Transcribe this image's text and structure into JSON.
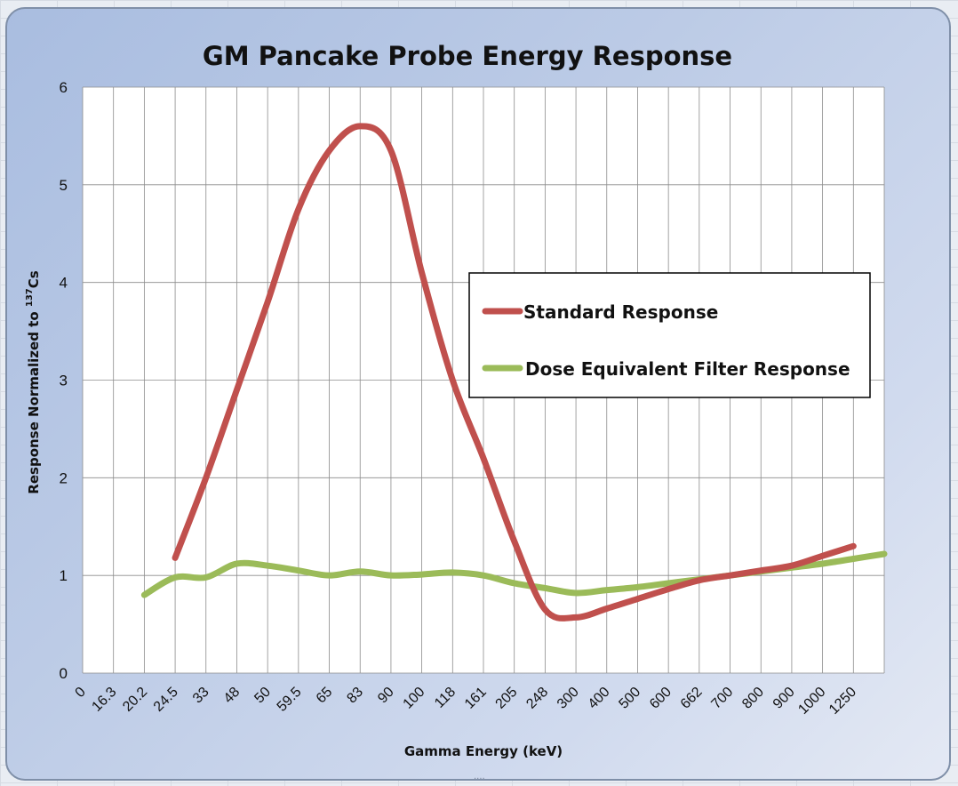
{
  "colors": {
    "standard": "#c0504d",
    "filter": "#9bbb59",
    "grid": "#8c8c8c",
    "plot_bg": "#ffffff"
  },
  "chart_data": {
    "type": "line",
    "title": "GM Pancake Probe Energy Response",
    "xlabel": "Gamma Energy (keV)",
    "ylabel_main": "Response Normalized to ",
    "ylabel_sup": "137",
    "ylabel_end": "Cs",
    "ylim": [
      0,
      6
    ],
    "yticks": [
      "0",
      "1",
      "2",
      "3",
      "4",
      "5",
      "6"
    ],
    "categories": [
      "0",
      "16.3",
      "20.2",
      "24.5",
      "33",
      "48",
      "50",
      "59.5",
      "65",
      "83",
      "90",
      "100",
      "118",
      "161",
      "205",
      "248",
      "300",
      "400",
      "500",
      "600",
      "662",
      "700",
      "800",
      "900",
      "1000",
      "1250"
    ],
    "grid": true,
    "legend_position": "right-center",
    "series": [
      {
        "name": "Standard Response",
        "values": [
          null,
          null,
          1.18,
          2.0,
          2.9,
          3.8,
          4.75,
          5.35,
          5.6,
          5.35,
          4.1,
          3.0,
          2.2,
          1.35,
          0.65,
          0.57,
          0.66,
          0.76,
          0.86,
          0.95,
          1.0,
          1.05,
          1.1,
          1.2,
          1.3,
          null
        ]
      },
      {
        "name": "Dose Equivalent Filter Response",
        "values": [
          null,
          0.8,
          0.98,
          0.98,
          1.12,
          1.1,
          1.05,
          1.0,
          1.04,
          1.0,
          1.01,
          1.03,
          1.0,
          0.92,
          0.87,
          0.82,
          0.85,
          0.88,
          0.92,
          0.96,
          1.0,
          1.04,
          1.08,
          1.12,
          1.17,
          1.22
        ]
      }
    ]
  }
}
